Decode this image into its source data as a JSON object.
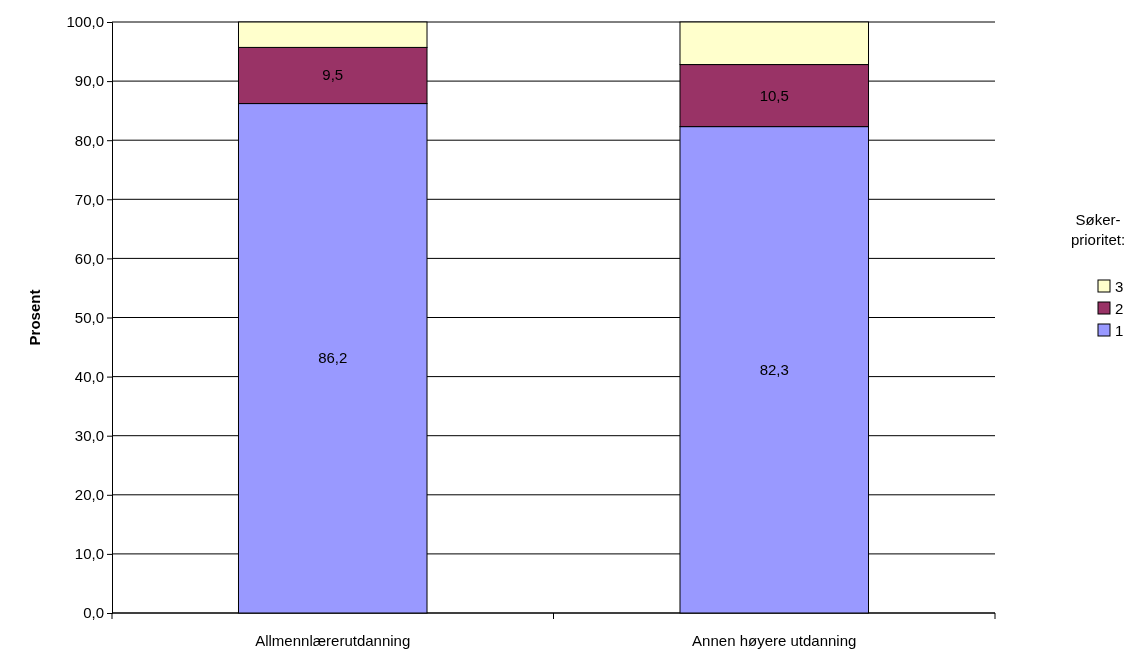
{
  "chart_data": {
    "type": "bar",
    "stacked": true,
    "ylabel": "Prosent",
    "legend_title": "Søker-prioritet:",
    "legend": "right",
    "grid": "y",
    "categories": [
      "Allmennlærerutdanning",
      "Annen høyere utdanning"
    ],
    "series": [
      {
        "name": "1",
        "color": "#9999ff",
        "values": [
          86.2,
          82.3
        ],
        "value_labels": [
          "86,2",
          "82,3"
        ]
      },
      {
        "name": "2",
        "color": "#993366",
        "values": [
          9.5,
          10.5
        ],
        "value_labels": [
          "9,5",
          "10,5"
        ]
      },
      {
        "name": "3",
        "color": "#ffffcc",
        "values": [
          4.3,
          7.2
        ],
        "value_labels": [
          null,
          null
        ]
      }
    ],
    "ylim": [
      0,
      100
    ],
    "yticks": [
      {
        "value": 0,
        "label": "0,0"
      },
      {
        "value": 10,
        "label": "10,0"
      },
      {
        "value": 20,
        "label": "20,0"
      },
      {
        "value": 30,
        "label": "30,0"
      },
      {
        "value": 40,
        "label": "40,0"
      },
      {
        "value": 50,
        "label": "50,0"
      },
      {
        "value": 60,
        "label": "60,0"
      },
      {
        "value": 70,
        "label": "70,0"
      },
      {
        "value": 80,
        "label": "80,0"
      },
      {
        "value": 90,
        "label": "90,0"
      },
      {
        "value": 100,
        "label": "100,0"
      }
    ]
  }
}
